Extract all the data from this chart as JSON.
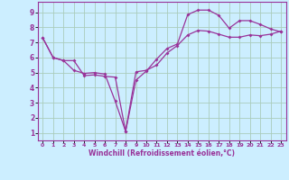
{
  "xlabel": "Windchill (Refroidissement éolien,°C)",
  "bg_color": "#cceeff",
  "grid_color": "#aaccbb",
  "line_color": "#993399",
  "xlim": [
    -0.5,
    23.5
  ],
  "ylim": [
    0.5,
    9.7
  ],
  "xticks": [
    0,
    1,
    2,
    3,
    4,
    5,
    6,
    7,
    8,
    9,
    10,
    11,
    12,
    13,
    14,
    15,
    16,
    17,
    18,
    19,
    20,
    21,
    22,
    23
  ],
  "yticks": [
    1,
    2,
    3,
    4,
    5,
    6,
    7,
    8,
    9
  ],
  "line1_x": [
    0,
    1,
    2,
    3,
    4,
    5,
    6,
    7,
    8,
    9,
    10,
    11,
    12,
    13,
    14,
    15,
    16,
    17,
    18,
    19,
    20,
    21,
    22,
    23
  ],
  "line1_y": [
    7.3,
    6.0,
    5.8,
    5.8,
    4.8,
    4.85,
    4.75,
    4.7,
    1.1,
    4.5,
    5.1,
    5.9,
    6.6,
    6.9,
    8.85,
    9.15,
    9.15,
    8.8,
    7.95,
    8.45,
    8.45,
    8.2,
    7.9,
    7.7
  ],
  "line2_x": [
    0,
    1,
    2,
    3,
    4,
    5,
    6,
    7,
    8,
    9,
    10,
    11,
    12,
    13,
    14,
    15,
    16,
    17,
    18,
    19,
    20,
    21,
    22,
    23
  ],
  "line2_y": [
    7.3,
    6.0,
    5.8,
    5.15,
    4.95,
    5.0,
    4.9,
    3.1,
    1.1,
    5.05,
    5.15,
    5.5,
    6.3,
    6.8,
    7.5,
    7.8,
    7.75,
    7.55,
    7.35,
    7.35,
    7.5,
    7.45,
    7.55,
    7.75
  ]
}
